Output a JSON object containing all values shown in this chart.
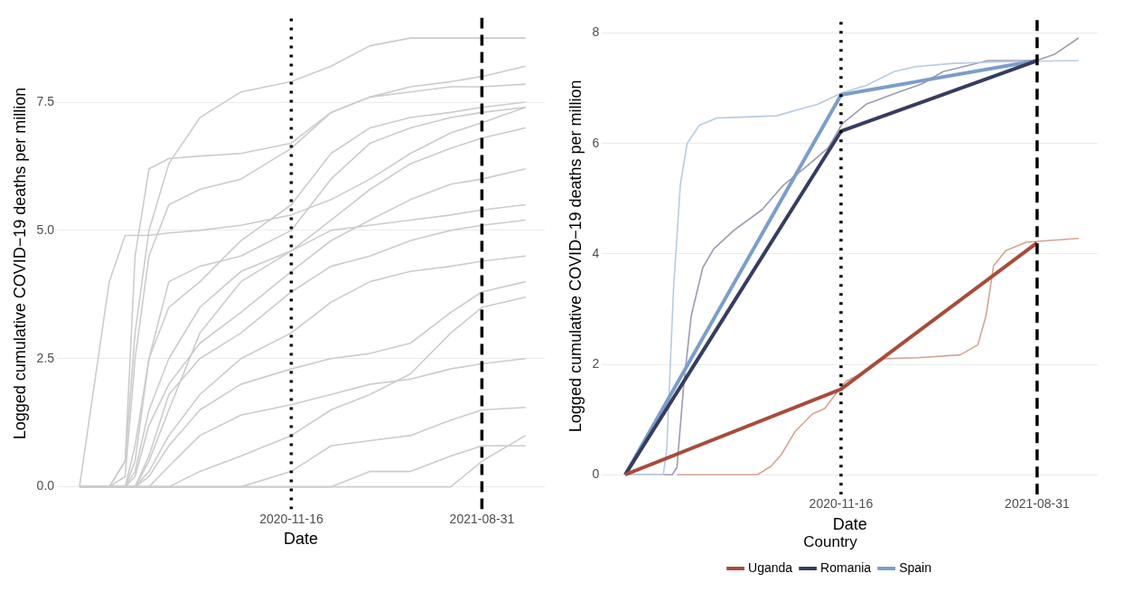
{
  "chart_data": [
    {
      "type": "line",
      "xlabel": "Date",
      "ylabel": "Logged cumulative COVID−19 deaths per million",
      "grid": true,
      "x": [
        "2020-01-01",
        "2020-02-15",
        "2020-03-10",
        "2020-03-25",
        "2020-04-15",
        "2020-05-15",
        "2020-07-01",
        "2020-09-01",
        "2020-11-16",
        "2021-01-15",
        "2021-03-15",
        "2021-05-15",
        "2021-07-15",
        "2021-08-31",
        "2021-11-05"
      ],
      "series": [
        {
          "color": "#cccccc",
          "values": [
            0,
            0,
            0.5,
            3.0,
            5.0,
            6.3,
            7.2,
            7.7,
            7.9,
            8.2,
            8.6,
            8.75,
            8.75,
            8.75,
            8.75
          ]
        },
        {
          "color": "#cccccc",
          "values": [
            0,
            4.0,
            4.9,
            4.9,
            4.9,
            4.95,
            5.0,
            5.1,
            5.3,
            5.6,
            6.0,
            6.5,
            6.9,
            7.1,
            7.4
          ]
        },
        {
          "color": "#cccccc",
          "values": [
            0,
            0,
            0.5,
            4.5,
            6.2,
            6.4,
            6.45,
            6.5,
            6.7,
            7.3,
            7.6,
            7.7,
            7.8,
            7.8,
            7.85
          ]
        },
        {
          "color": "#cccccc",
          "values": [
            0,
            0,
            0.2,
            2.5,
            4.5,
            5.5,
            5.8,
            6.0,
            6.6,
            7.3,
            7.6,
            7.8,
            7.9,
            8.0,
            8.2
          ]
        },
        {
          "color": "#cccccc",
          "values": [
            0,
            0,
            0,
            0.8,
            2.5,
            3.5,
            4.0,
            4.8,
            5.5,
            6.5,
            7.0,
            7.2,
            7.3,
            7.4,
            7.5
          ]
        },
        {
          "color": "#cccccc",
          "values": [
            0,
            0,
            0,
            0.3,
            1.5,
            2.5,
            3.5,
            4.2,
            4.6,
            5.2,
            5.8,
            6.3,
            6.6,
            6.8,
            7.0
          ]
        },
        {
          "color": "#cccccc",
          "values": [
            0,
            0,
            0,
            0.2,
            1.2,
            2.0,
            2.8,
            3.4,
            4.2,
            4.8,
            5.2,
            5.6,
            5.9,
            6.0,
            6.2
          ]
        },
        {
          "color": "#cccccc",
          "values": [
            0,
            0,
            0,
            0,
            0.5,
            1.5,
            3.0,
            4.0,
            4.6,
            5.0,
            5.1,
            5.2,
            5.3,
            5.4,
            5.5
          ]
        },
        {
          "color": "#cccccc",
          "values": [
            0,
            0,
            0,
            0,
            0.3,
            1.0,
            1.8,
            2.5,
            3.0,
            3.6,
            4.0,
            4.2,
            4.3,
            4.4,
            4.5
          ]
        },
        {
          "color": "#cccccc",
          "values": [
            0,
            0,
            0,
            0,
            0.2,
            0.8,
            1.5,
            2.0,
            2.3,
            2.5,
            2.6,
            2.8,
            3.4,
            3.8,
            4.0
          ]
        },
        {
          "color": "#cccccc",
          "values": [
            0,
            0,
            0,
            0,
            0,
            0.4,
            1.0,
            1.4,
            1.6,
            1.8,
            2.0,
            2.1,
            2.3,
            2.4,
            2.5
          ]
        },
        {
          "color": "#cccccc",
          "values": [
            0,
            0,
            0,
            0,
            0,
            0,
            0.3,
            0.6,
            1.0,
            1.5,
            1.8,
            2.2,
            3.0,
            3.5,
            3.7
          ]
        },
        {
          "color": "#cccccc",
          "values": [
            0,
            0,
            0,
            0,
            0,
            0,
            0,
            0,
            0.3,
            0.8,
            0.9,
            1.0,
            1.3,
            1.5,
            1.55
          ]
        },
        {
          "color": "#cccccc",
          "values": [
            0,
            0,
            0,
            0,
            0,
            0,
            0,
            0,
            0,
            0,
            0.3,
            0.3,
            0.6,
            0.8,
            0.8
          ]
        },
        {
          "color": "#cccccc",
          "values": [
            0,
            0,
            0,
            0,
            0,
            0,
            0,
            0,
            0,
            0,
            0,
            0,
            0,
            0.5,
            1.0
          ]
        },
        {
          "color": "#cccccc",
          "values": [
            0,
            0,
            0,
            0.5,
            2.5,
            4.0,
            4.3,
            4.5,
            5.0,
            6.0,
            6.7,
            7.0,
            7.2,
            7.3,
            7.4
          ]
        },
        {
          "color": "#cccccc",
          "values": [
            0,
            0,
            0,
            0,
            0.6,
            1.8,
            2.5,
            3.0,
            3.8,
            4.3,
            4.5,
            4.8,
            5.0,
            5.1,
            5.2
          ]
        }
      ],
      "xlim": [
        "2019-11-28",
        "2021-12-04"
      ],
      "ylim": [
        -0.44,
        9.15
      ],
      "xticks": [
        "2020-11-16",
        "2021-08-31"
      ],
      "yticks": [
        {
          "value": 0,
          "label": "0.0"
        },
        {
          "value": 2.5,
          "label": "2.5"
        },
        {
          "value": 5,
          "label": "5.0"
        },
        {
          "value": 7.5,
          "label": "7.5"
        }
      ],
      "ref_lines": [
        {
          "axis": "x",
          "value": "2020-11-16",
          "color": "#000000",
          "line_style": "dotted"
        },
        {
          "axis": "x",
          "value": "2021-08-31",
          "color": "#000000",
          "line_style": "dashed"
        }
      ]
    },
    {
      "type": "line",
      "xlabel": "Date",
      "ylabel": "Logged cumulative COVID−19 deaths per million",
      "grid": true,
      "legend": "bottom",
      "legend_title": "Country",
      "series": [
        {
          "name": "Uganda",
          "color": "#a84c3c",
          "x": [
            "2020-01-04",
            "2020-11-16",
            "2021-08-31"
          ],
          "values": [
            0,
            1.55,
            4.2
          ]
        },
        {
          "name": "Romania",
          "color": "#363d5e",
          "x": [
            "2020-01-04",
            "2020-11-16",
            "2021-08-31"
          ],
          "values": [
            0,
            6.22,
            7.5
          ]
        },
        {
          "name": "Spain",
          "color": "#7b9ec9",
          "x": [
            "2020-01-04",
            "2020-11-16",
            "2021-08-31"
          ],
          "values": [
            0,
            6.88,
            7.5
          ]
        },
        {
          "color": "#b8cbe3",
          "x": [
            "2020-01-04",
            "2020-02-29",
            "2020-03-05",
            "2020-03-15",
            "2020-03-25",
            "2020-04-04",
            "2020-04-22",
            "2020-05-18",
            "2020-08-13",
            "2020-10-13",
            "2020-11-18",
            "2020-12-23",
            "2021-02-02",
            "2021-03-05",
            "2021-04-30",
            "2021-07-16",
            "2021-10-31"
          ],
          "values": [
            0,
            0,
            0.45,
            3.37,
            5.25,
            6.0,
            6.33,
            6.46,
            6.5,
            6.71,
            6.92,
            7.05,
            7.3,
            7.39,
            7.45,
            7.48,
            7.5
          ]
        },
        {
          "color": "#9d9bb0",
          "x": [
            "2020-01-04",
            "2020-03-13",
            "2020-03-20",
            "2020-03-30",
            "2020-04-10",
            "2020-04-27",
            "2020-05-13",
            "2020-06-12",
            "2020-07-23",
            "2020-08-23",
            "2020-09-28",
            "2020-10-28",
            "2020-11-18",
            "2020-12-23",
            "2021-02-02",
            "2021-03-15",
            "2021-04-15",
            "2021-06-20",
            "2021-08-30",
            "2021-09-25",
            "2021-10-31"
          ],
          "values": [
            0,
            0,
            0.13,
            1.63,
            2.88,
            3.75,
            4.09,
            4.43,
            4.8,
            5.24,
            5.6,
            5.92,
            6.36,
            6.71,
            6.9,
            7.08,
            7.3,
            7.5,
            7.5,
            7.61,
            7.91
          ]
        },
        {
          "color": "#d6a396",
          "x": [
            "2020-03-20",
            "2020-07-16",
            "2020-08-05",
            "2020-08-20",
            "2020-09-10",
            "2020-10-05",
            "2020-10-23",
            "2020-11-07",
            "2020-11-23",
            "2020-12-23",
            "2021-01-18",
            "2021-03-10",
            "2021-05-10",
            "2021-06-05",
            "2021-06-17",
            "2021-06-28",
            "2021-07-16",
            "2021-08-15",
            "2021-10-31"
          ],
          "values": [
            0,
            0,
            0.15,
            0.36,
            0.79,
            1.1,
            1.2,
            1.44,
            1.69,
            1.88,
            2.1,
            2.12,
            2.17,
            2.35,
            2.88,
            3.78,
            4.06,
            4.21,
            4.28
          ]
        }
      ],
      "xlim": [
        "2019-12-01",
        "2021-11-28"
      ],
      "ylim": [
        -0.36,
        8.28
      ],
      "xticks": [
        "2020-11-16",
        "2021-08-31"
      ],
      "yticks": [
        0,
        2,
        4,
        6,
        8
      ],
      "ref_lines": [
        {
          "axis": "x",
          "value": "2020-11-16",
          "color": "#000000",
          "line_style": "dotted"
        },
        {
          "axis": "x",
          "value": "2021-08-31",
          "color": "#000000",
          "line_style": "dashed"
        }
      ]
    }
  ]
}
